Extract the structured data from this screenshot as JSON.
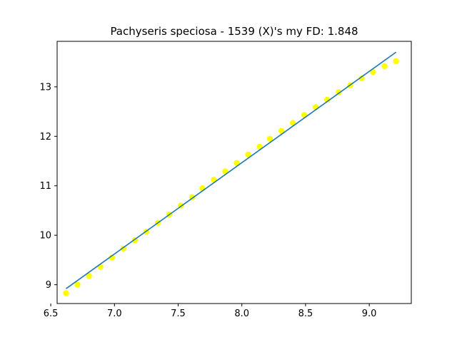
{
  "chart_data": {
    "type": "scatter",
    "title": "Pachyseris speciosa - 1539 (X)'s my FD: 1.848",
    "xlabel": "",
    "ylabel": "",
    "xlim": [
      6.55,
      9.33
    ],
    "ylim": [
      8.62,
      13.92
    ],
    "xticks": [
      6.5,
      7.0,
      7.5,
      8.0,
      8.5,
      9.0
    ],
    "xtick_labels": [
      "6.5",
      "7.0",
      "7.5",
      "8.0",
      "8.5",
      "9.0"
    ],
    "yticks": [
      9,
      10,
      11,
      12,
      13
    ],
    "ytick_labels": [
      "9",
      "10",
      "11",
      "12",
      "13"
    ],
    "grid": false,
    "colors": {
      "points": "#ffff00",
      "fit_line": "#1f77b4",
      "axes": "#000000"
    },
    "series": [
      {
        "kind": "scatter",
        "x": [
          6.62,
          6.71,
          6.8,
          6.89,
          6.98,
          7.07,
          7.16,
          7.25,
          7.34,
          7.43,
          7.52,
          7.61,
          7.69,
          7.78,
          7.87,
          7.96,
          8.05,
          8.14,
          8.22,
          8.31,
          8.4,
          8.49,
          8.58,
          8.67,
          8.76,
          8.85,
          8.94,
          9.03,
          9.12,
          9.21
        ],
        "y": [
          8.83,
          9.0,
          9.18,
          9.36,
          9.55,
          9.73,
          9.9,
          10.07,
          10.25,
          10.42,
          10.6,
          10.77,
          10.95,
          11.12,
          11.29,
          11.46,
          11.63,
          11.79,
          11.95,
          12.11,
          12.27,
          12.43,
          12.59,
          12.74,
          12.89,
          13.03,
          13.17,
          13.3,
          13.42,
          13.52
        ]
      },
      {
        "kind": "line",
        "x": [
          6.62,
          9.21
        ],
        "y": [
          8.92,
          13.7
        ]
      }
    ]
  }
}
